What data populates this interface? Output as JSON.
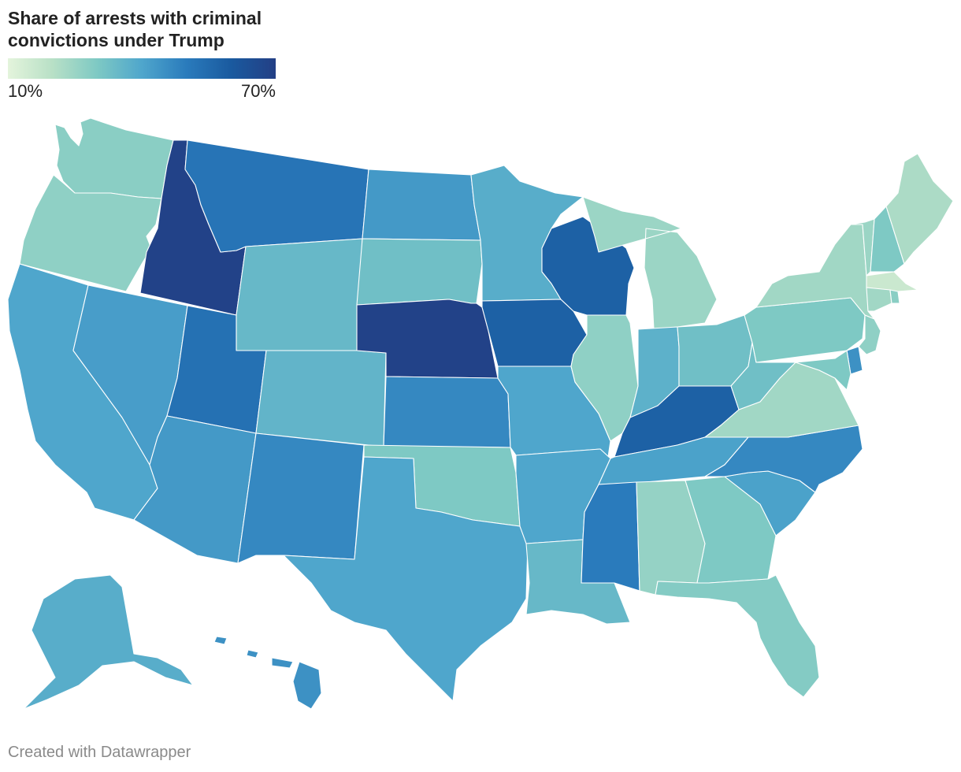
{
  "title": "Share of arrests with criminal convictions under Trump",
  "legend": {
    "min_label": "10%",
    "max_label": "70%",
    "min_value": 10,
    "max_value": 70,
    "gradient": [
      "#e4f4dc",
      "#b8e0c6",
      "#7ec9c4",
      "#4fa6cc",
      "#2a7bbc",
      "#1a5a9f",
      "#233f85"
    ]
  },
  "footer": {
    "credit": "Created with Datawrapper"
  },
  "states": {
    "WA": 28,
    "OR": 27,
    "CA": 40,
    "NV": 42,
    "ID": 69,
    "MT": 52,
    "WY": 35,
    "UT": 53,
    "AZ": 43,
    "CO": 36,
    "NM": 47,
    "ND": 43,
    "SD": 33,
    "NE": 69,
    "KS": 47,
    "OK": 30,
    "TX": 40,
    "MN": 38,
    "IA": 58,
    "MO": 40,
    "AR": 40,
    "LA": 35,
    "WI": 58,
    "IL": 27,
    "MI": 25,
    "IN": 37,
    "OH": 33,
    "KY": 58,
    "TN": 41,
    "MS": 50,
    "AL": 26,
    "GA": 30,
    "FL": 29,
    "SC": 41,
    "NC": 47,
    "VA": 24,
    "WV": 33,
    "PA": 30,
    "NY": 24,
    "VT": 25,
    "NH": 30,
    "ME": 22,
    "MA": 16,
    "CT": 24,
    "RI": 28,
    "NJ": 27,
    "DE": 45,
    "MD": 30,
    "AK": 38,
    "HI": 45
  }
}
